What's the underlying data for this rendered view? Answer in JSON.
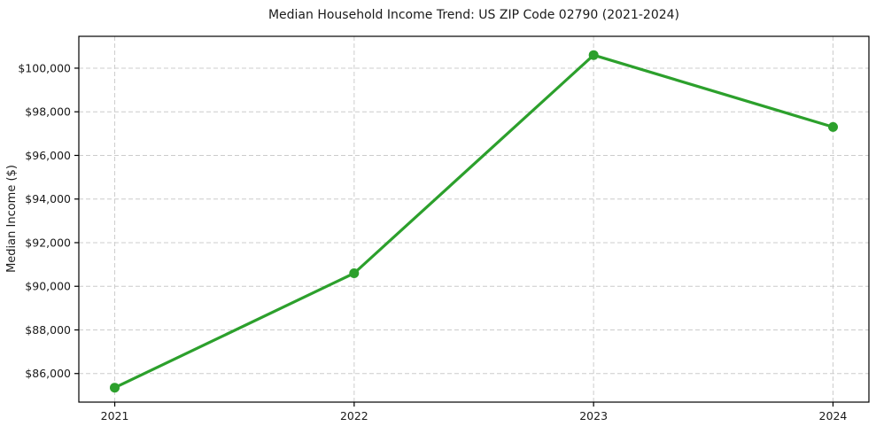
{
  "chart_data": {
    "type": "line",
    "title": "Median Household Income Trend: US ZIP Code 02790 (2021-2024)",
    "xlabel": "",
    "ylabel": "Median Income ($)",
    "x": [
      2021,
      2022,
      2023,
      2024
    ],
    "x_tick_labels": [
      "2021",
      "2022",
      "2023",
      "2024"
    ],
    "series": [
      {
        "name": "Median Household Income",
        "values": [
          85350,
          90600,
          100600,
          97300
        ],
        "color": "#2ca02c",
        "marker": "circle"
      }
    ],
    "y_ticks": [
      86000,
      88000,
      90000,
      92000,
      94000,
      96000,
      98000,
      100000
    ],
    "y_tick_labels": [
      "$86,000",
      "$88,000",
      "$90,000",
      "$92,000",
      "$94,000",
      "$96,000",
      "$98,000",
      "$100,000"
    ],
    "xlim": [
      2020.85,
      2024.15
    ],
    "ylim": [
      84690,
      101460
    ],
    "grid": true,
    "grid_style": "dashed",
    "grid_color": "#cccccc",
    "spine_color": "#000000",
    "background": "#ffffff",
    "legend": null
  }
}
